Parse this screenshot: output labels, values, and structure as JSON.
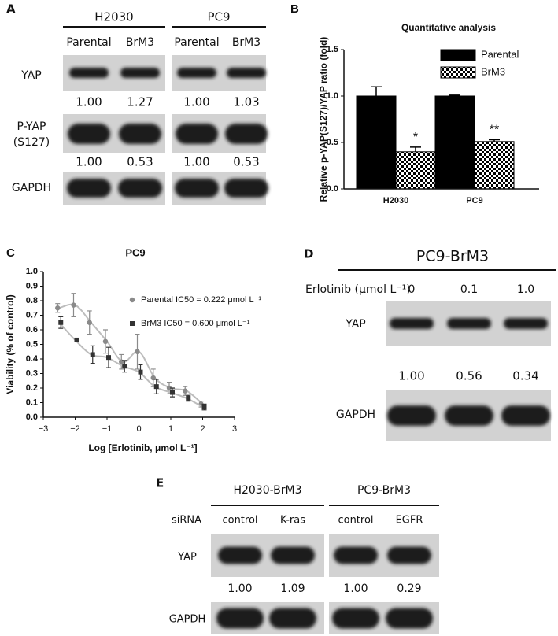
{
  "panel_a": {
    "label": "A",
    "groups": [
      {
        "name": "H2030",
        "lanes": [
          "Parental",
          "BrM3"
        ]
      },
      {
        "name": "PC9",
        "lanes": [
          "Parental",
          "BrM3"
        ]
      }
    ],
    "rows": [
      {
        "label": "YAP",
        "quantities": [
          "1.00",
          "1.27",
          "1.00",
          "1.03"
        ]
      },
      {
        "label": [
          "P-YAP",
          "(S127)"
        ],
        "quantities": [
          "1.00",
          "0.53",
          "1.00",
          "0.53"
        ]
      },
      {
        "label": "GAPDH"
      }
    ]
  },
  "chart_data": [
    {
      "type": "bar",
      "panel_label": "B",
      "title": "Quantitative analysis",
      "y_label": "Relative p-YAP(S127)/YAP ratio (fold)",
      "categories": [
        "H2030",
        "PC9"
      ],
      "series": [
        {
          "name": "Parental",
          "color": "#000000",
          "values": [
            1.0,
            1.0
          ],
          "errors": [
            0.1,
            0.01
          ]
        },
        {
          "name": "BrM3",
          "color": "#000000",
          "hatch": true,
          "values": [
            0.4,
            0.51
          ],
          "errors": [
            0.05,
            0.02
          ]
        }
      ],
      "annotations": [
        "*",
        "**"
      ],
      "ylim": [
        0,
        1.5
      ],
      "yticks": [
        {
          "value": 0,
          "label": "0.0"
        },
        0.5,
        {
          "value": 1,
          "label": "1.0"
        },
        1.5
      ],
      "legend": "top-right"
    },
    {
      "type": "scatter",
      "panel_label": "C",
      "title": "PC9",
      "x_label": "Log [Erlotinib, μmol L⁻¹]",
      "y_label": "Viability (% of control)",
      "x": [
        -2.5,
        -2,
        -1.5,
        -1,
        -0.5,
        0,
        0.5,
        1,
        1.5,
        2
      ],
      "series": [
        {
          "name": "Parental IC50 = 0.222 μmol L⁻¹",
          "color": "#8a8a8a",
          "marker": "circle",
          "values": [
            0.75,
            0.77,
            0.65,
            0.52,
            0.38,
            0.45,
            0.27,
            0.2,
            0.18,
            0.09
          ],
          "errors": [
            0.03,
            0.08,
            0.08,
            0.08,
            0.05,
            0.12,
            0.06,
            0.04,
            0.03,
            0.02
          ]
        },
        {
          "name": "BrM3 IC50 = 0.600 μmol L⁻¹",
          "color": "#333333",
          "marker": "square",
          "values": [
            0.65,
            0.53,
            0.43,
            0.41,
            0.35,
            0.31,
            0.21,
            0.17,
            0.13,
            0.07
          ],
          "errors": [
            0.04,
            0.01,
            0.06,
            0.07,
            0.04,
            0.05,
            0.05,
            0.03,
            0.02,
            0.02
          ]
        }
      ],
      "xlim": [
        -3,
        3
      ],
      "xticks": [
        {
          "value": -3,
          "label": "−3"
        },
        {
          "value": -2,
          "label": "−2"
        },
        {
          "value": -1,
          "label": "−1"
        },
        0,
        1,
        2,
        3
      ],
      "ylim": [
        0,
        1
      ],
      "yticks": [
        {
          "value": 0,
          "label": "0.0"
        },
        0.1,
        0.2,
        0.3,
        0.4,
        0.5,
        0.6,
        0.7,
        0.8,
        0.9,
        {
          "value": 1,
          "label": "1.0"
        }
      ],
      "curve_color": "#bdbdbd",
      "legend": "top-right"
    }
  ],
  "panel_d": {
    "label": "D",
    "title": "PC9-BrM3",
    "treatment": "Erlotinib (μmol L⁻¹)",
    "lanes": [
      "0",
      "0.1",
      "1.0"
    ],
    "rows": [
      {
        "label": "YAP",
        "quantities": [
          "1.00",
          "0.56",
          "0.34"
        ]
      },
      {
        "label": "GAPDH"
      }
    ]
  },
  "panel_e": {
    "label": "E",
    "row_header": "siRNA",
    "groups": [
      {
        "name": "H2030-BrM3",
        "lanes": [
          "control",
          "K-ras"
        ]
      },
      {
        "name": "PC9-BrM3",
        "lanes": [
          "control",
          "EGFR"
        ]
      }
    ],
    "rows": [
      {
        "label": "YAP",
        "quantities": [
          "1.00",
          "1.09",
          "1.00",
          "0.29"
        ]
      },
      {
        "label": "GAPDH"
      }
    ]
  }
}
